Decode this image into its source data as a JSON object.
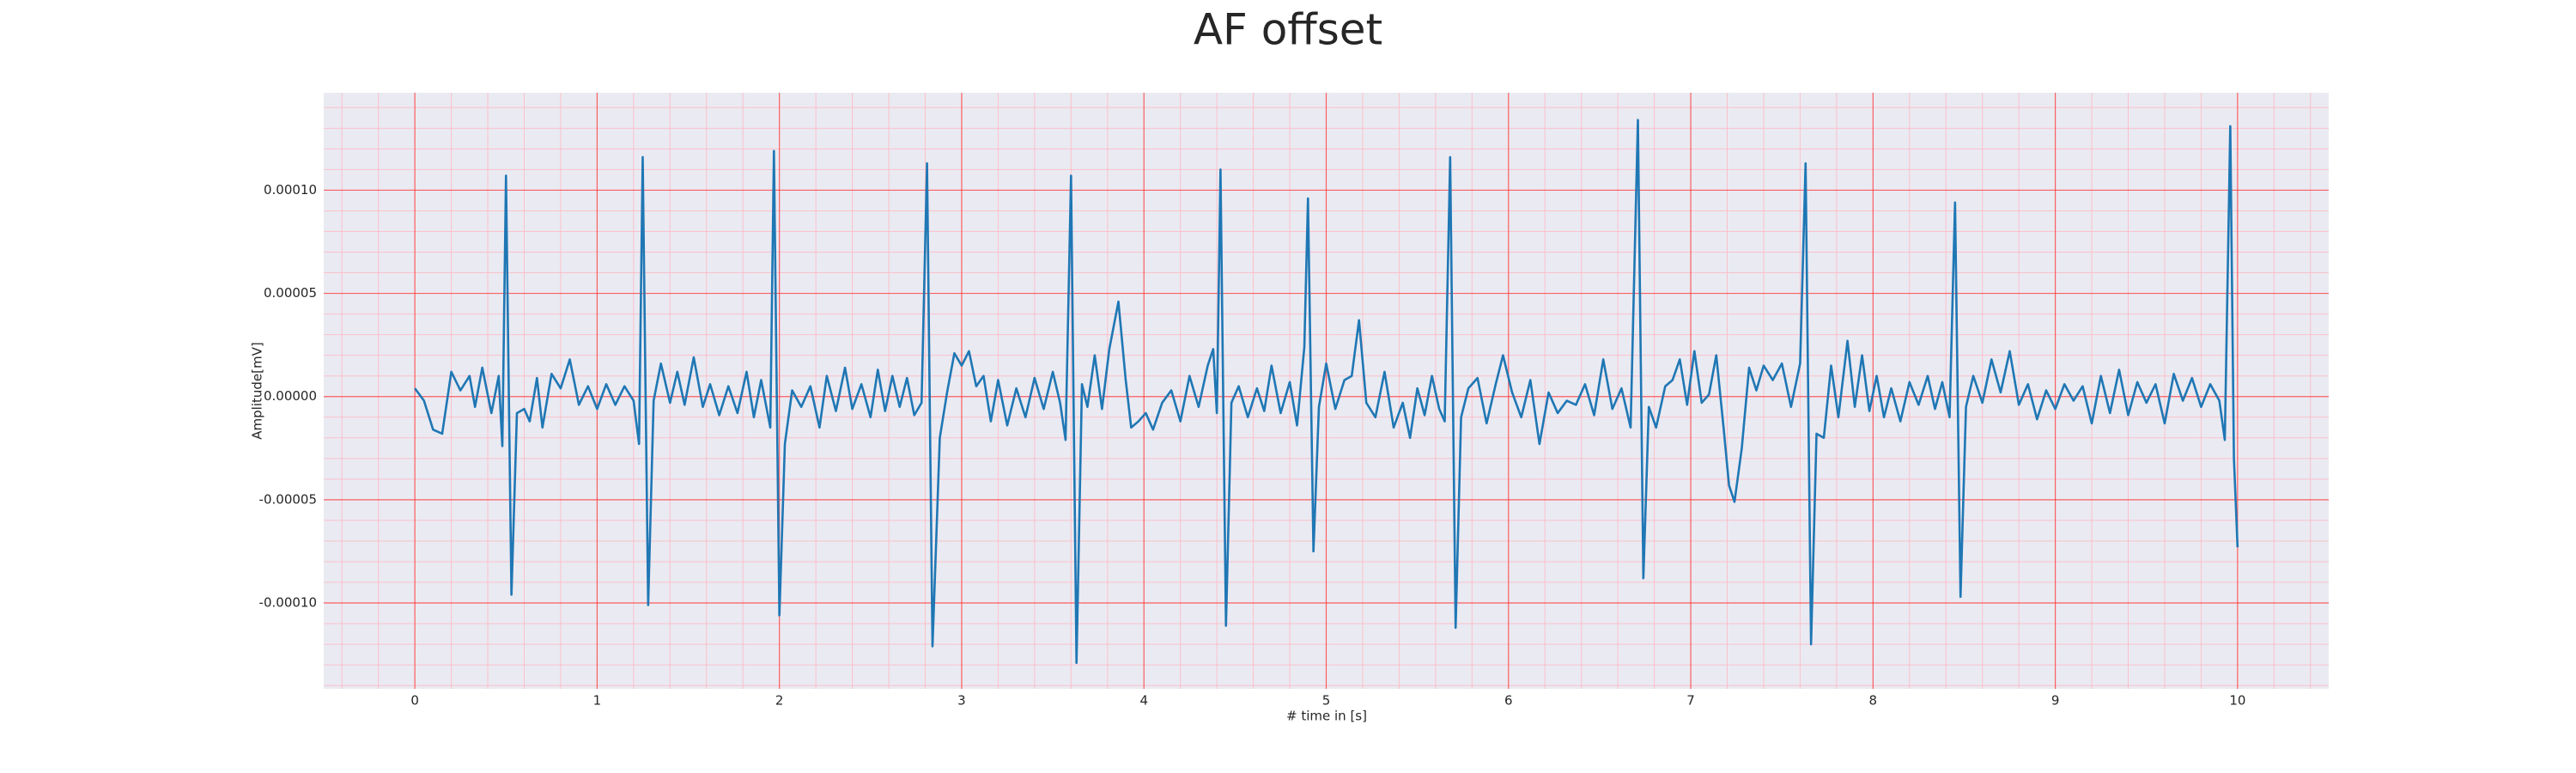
{
  "chart_data": {
    "type": "line",
    "title": "AF offset",
    "xlabel": "# time in [s]",
    "ylabel": "Amplitude[mV]",
    "xlim": [
      -0.5,
      10.5
    ],
    "ylim": [
      -0.0001416,
      0.0001472
    ],
    "xticks": [
      0,
      1,
      2,
      3,
      4,
      5,
      6,
      7,
      8,
      9,
      10
    ],
    "yticks": [
      {
        "value": -0.0001,
        "label": "-0.00010"
      },
      {
        "value": -5e-05,
        "label": "-0.00005"
      },
      {
        "value": 0,
        "label": "0.00000"
      },
      {
        "value": 5e-05,
        "label": "0.00005"
      },
      {
        "value": 0.0001,
        "label": "0.00010"
      }
    ],
    "grid": true,
    "minor_grid": true,
    "series": [
      {
        "color": "#1f77b4",
        "x": [
          0.0,
          0.05,
          0.1,
          0.15,
          0.2,
          0.25,
          0.3,
          0.33,
          0.37,
          0.42,
          0.46,
          0.48,
          0.5,
          0.53,
          0.56,
          0.6,
          0.63,
          0.67,
          0.7,
          0.75,
          0.8,
          0.85,
          0.9,
          0.95,
          1.0,
          1.05,
          1.1,
          1.15,
          1.2,
          1.23,
          1.25,
          1.28,
          1.31,
          1.35,
          1.4,
          1.44,
          1.48,
          1.53,
          1.58,
          1.62,
          1.67,
          1.72,
          1.77,
          1.82,
          1.86,
          1.9,
          1.95,
          1.97,
          2.0,
          2.03,
          2.07,
          2.12,
          2.17,
          2.22,
          2.26,
          2.31,
          2.36,
          2.4,
          2.45,
          2.5,
          2.54,
          2.58,
          2.62,
          2.66,
          2.7,
          2.74,
          2.78,
          2.81,
          2.84,
          2.88,
          2.92,
          2.96,
          3.0,
          3.04,
          3.08,
          3.12,
          3.16,
          3.2,
          3.25,
          3.3,
          3.35,
          3.4,
          3.45,
          3.5,
          3.54,
          3.57,
          3.6,
          3.63,
          3.66,
          3.69,
          3.73,
          3.77,
          3.81,
          3.86,
          3.9,
          3.93,
          3.97,
          4.01,
          4.05,
          4.1,
          4.15,
          4.2,
          4.25,
          4.3,
          4.35,
          4.38,
          4.4,
          4.42,
          4.45,
          4.48,
          4.52,
          4.57,
          4.62,
          4.66,
          4.7,
          4.75,
          4.8,
          4.84,
          4.88,
          4.9,
          4.93,
          4.96,
          5.0,
          5.05,
          5.1,
          5.14,
          5.18,
          5.22,
          5.27,
          5.32,
          5.37,
          5.42,
          5.46,
          5.5,
          5.54,
          5.58,
          5.62,
          5.65,
          5.68,
          5.71,
          5.74,
          5.78,
          5.83,
          5.88,
          5.93,
          5.97,
          6.02,
          6.07,
          6.12,
          6.17,
          6.22,
          6.27,
          6.32,
          6.37,
          6.42,
          6.47,
          6.52,
          6.57,
          6.62,
          6.67,
          6.71,
          6.74,
          6.77,
          6.81,
          6.86,
          6.9,
          6.94,
          6.98,
          7.02,
          7.06,
          7.1,
          7.14,
          7.18,
          7.21,
          7.24,
          7.28,
          7.32,
          7.36,
          7.4,
          7.45,
          7.5,
          7.55,
          7.6,
          7.63,
          7.66,
          7.69,
          7.73,
          7.77,
          7.81,
          7.86,
          7.9,
          7.94,
          7.98,
          8.02,
          8.06,
          8.1,
          8.15,
          8.2,
          8.25,
          8.3,
          8.34,
          8.38,
          8.42,
          8.45,
          8.48,
          8.51,
          8.55,
          8.6,
          8.65,
          8.7,
          8.75,
          8.8,
          8.85,
          8.9,
          8.95,
          9.0,
          9.05,
          9.1,
          9.15,
          9.2,
          9.25,
          9.3,
          9.35,
          9.4,
          9.45,
          9.5,
          9.55,
          9.6,
          9.65,
          9.7,
          9.75,
          9.8,
          9.85,
          9.9,
          9.93,
          9.96,
          9.98,
          10.0
        ],
        "values": [
          4e-06,
          -2e-06,
          -1.6e-05,
          -1.8e-05,
          1.2e-05,
          3e-06,
          1e-05,
          -5e-06,
          1.4e-05,
          -8e-06,
          1e-05,
          -2.4e-05,
          0.000107,
          -9.6e-05,
          -8e-06,
          -6e-06,
          -1.2e-05,
          9e-06,
          -1.5e-05,
          1.1e-05,
          4e-06,
          1.8e-05,
          -4e-06,
          5e-06,
          -6e-06,
          6e-06,
          -4e-06,
          5e-06,
          -2e-06,
          -2.3e-05,
          0.000116,
          -0.000101,
          -2e-06,
          1.6e-05,
          -3e-06,
          1.2e-05,
          -4e-06,
          1.9e-05,
          -5e-06,
          6e-06,
          -9e-06,
          5e-06,
          -8e-06,
          1.2e-05,
          -1e-05,
          8e-06,
          -1.5e-05,
          0.000119,
          -0.000106,
          -2.3e-05,
          3e-06,
          -5e-06,
          5e-06,
          -1.5e-05,
          1e-05,
          -7e-06,
          1.4e-05,
          -6e-06,
          6e-06,
          -1e-05,
          1.3e-05,
          -7e-06,
          1e-05,
          -5e-06,
          9e-06,
          -9e-06,
          -3e-06,
          0.000113,
          -0.000121,
          -2e-05,
          2e-06,
          2.1e-05,
          1.5e-05,
          2.2e-05,
          5e-06,
          1e-05,
          -1.2e-05,
          8e-06,
          -1.4e-05,
          4e-06,
          -1e-05,
          9e-06,
          -6e-06,
          1.2e-05,
          -3e-06,
          -2.1e-05,
          0.000107,
          -0.000129,
          6e-06,
          -5e-06,
          2e-05,
          -6e-06,
          2.3e-05,
          4.6e-05,
          8e-06,
          -1.5e-05,
          -1.2e-05,
          -8e-06,
          -1.6e-05,
          -3e-06,
          3e-06,
          -1.2e-05,
          1e-05,
          -5e-06,
          1.5e-05,
          2.3e-05,
          -8e-06,
          0.00011,
          -0.000111,
          -3e-06,
          5e-06,
          -1e-05,
          4e-06,
          -7e-06,
          1.5e-05,
          -8e-06,
          7e-06,
          -1.4e-05,
          2.4e-05,
          9.6e-05,
          -7.5e-05,
          -5e-06,
          1.6e-05,
          -6e-06,
          8e-06,
          1e-05,
          3.7e-05,
          -3e-06,
          -1e-05,
          1.2e-05,
          -1.5e-05,
          -3e-06,
          -2e-05,
          4e-06,
          -9e-06,
          1e-05,
          -6e-06,
          -1.2e-05,
          0.000116,
          -0.000112,
          -1e-05,
          4e-06,
          9e-06,
          -1.3e-05,
          6e-06,
          2e-05,
          2e-06,
          -1e-05,
          8e-06,
          -2.3e-05,
          2e-06,
          -8e-06,
          -2e-06,
          -4e-06,
          6e-06,
          -9e-06,
          1.8e-05,
          -6e-06,
          4e-06,
          -1.5e-05,
          0.000134,
          -8.8e-05,
          -5e-06,
          -1.5e-05,
          5e-06,
          8e-06,
          1.8e-05,
          -4e-06,
          2.2e-05,
          -3e-06,
          1e-06,
          2e-05,
          -1.5e-05,
          -4.3e-05,
          -5.1e-05,
          -2.5e-05,
          1.4e-05,
          3e-06,
          1.5e-05,
          8e-06,
          1.6e-05,
          -5e-06,
          1.6e-05,
          0.000113,
          -0.00012,
          -1.8e-05,
          -2e-05,
          1.5e-05,
          -1e-05,
          2.7e-05,
          -5e-06,
          2e-05,
          -7e-06,
          1e-05,
          -1e-05,
          4e-06,
          -1.2e-05,
          7e-06,
          -4e-06,
          1e-05,
          -6e-06,
          7e-06,
          -1e-05,
          9.4e-05,
          -9.7e-05,
          -5e-06,
          1e-05,
          -3e-06,
          1.8e-05,
          2e-06,
          2.2e-05,
          -4e-06,
          6e-06,
          -1.1e-05,
          3e-06,
          -6e-06,
          6e-06,
          -2e-06,
          5e-06,
          -1.3e-05,
          1e-05,
          -8e-06,
          1.3e-05,
          -9e-06,
          7e-06,
          -3e-06,
          6e-06,
          -1.3e-05,
          1.1e-05,
          -2e-06,
          9e-06,
          -5e-06,
          6e-06,
          -2e-06,
          -2.1e-05,
          0.000131,
          -3e-05,
          -7.3e-05
        ]
      }
    ]
  }
}
